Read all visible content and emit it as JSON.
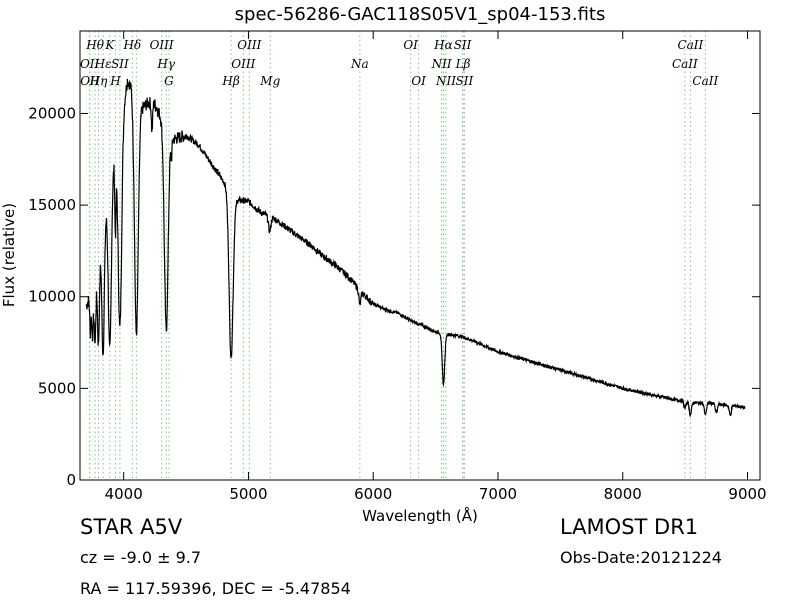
{
  "chart_data": {
    "type": "line",
    "title": "spec-56286-GAC118S05V1_sp04-153.fits",
    "xlabel": "Wavelength (Å)",
    "ylabel": "Flux (relative)",
    "xlim": [
      3650,
      9100
    ],
    "ylim": [
      0,
      24500
    ],
    "xticks": [
      4000,
      5000,
      6000,
      7000,
      8000,
      9000
    ],
    "yticks": [
      0,
      5000,
      10000,
      15000,
      20000
    ],
    "grid": false,
    "series_color": "#000000",
    "line_marker_color": "#7fc97f",
    "continuum": [
      [
        3700,
        9500
      ],
      [
        3730,
        10000
      ],
      [
        3760,
        10500
      ],
      [
        3800,
        12500
      ],
      [
        3850,
        14500
      ],
      [
        3900,
        16500
      ],
      [
        3950,
        18500
      ],
      [
        4000,
        20500
      ],
      [
        4030,
        21800
      ],
      [
        4060,
        21500
      ],
      [
        4100,
        20500
      ],
      [
        4150,
        20300
      ],
      [
        4200,
        20600
      ],
      [
        4250,
        20500
      ],
      [
        4300,
        19800
      ],
      [
        4350,
        19000
      ],
      [
        4400,
        18600
      ],
      [
        4500,
        18800
      ],
      [
        4600,
        18300
      ],
      [
        4700,
        17300
      ],
      [
        4800,
        16300
      ],
      [
        4900,
        15300
      ],
      [
        5000,
        15200
      ],
      [
        5100,
        14600
      ],
      [
        5200,
        14300
      ],
      [
        5300,
        13800
      ],
      [
        5400,
        13300
      ],
      [
        5500,
        12800
      ],
      [
        5600,
        12200
      ],
      [
        5700,
        11700
      ],
      [
        5800,
        11100
      ],
      [
        5900,
        10300
      ],
      [
        6000,
        9600
      ],
      [
        6100,
        9300
      ],
      [
        6200,
        9100
      ],
      [
        6300,
        8700
      ],
      [
        6400,
        8400
      ],
      [
        6500,
        8100
      ],
      [
        6600,
        7950
      ],
      [
        6700,
        7850
      ],
      [
        6800,
        7600
      ],
      [
        6900,
        7300
      ],
      [
        7000,
        7000
      ],
      [
        7200,
        6600
      ],
      [
        7400,
        6200
      ],
      [
        7600,
        5800
      ],
      [
        7800,
        5400
      ],
      [
        8000,
        5000
      ],
      [
        8200,
        4700
      ],
      [
        8400,
        4400
      ],
      [
        8500,
        4300
      ],
      [
        8600,
        4200
      ],
      [
        8700,
        4200
      ],
      [
        8800,
        4100
      ],
      [
        8900,
        4050
      ],
      [
        8980,
        3950
      ]
    ],
    "absorption_features": [
      {
        "center": 3733,
        "depth": 2000,
        "width": 5
      },
      {
        "center": 3750,
        "depth": 2500,
        "width": 6
      },
      {
        "center": 3771,
        "depth": 3500,
        "width": 7
      },
      {
        "center": 3798,
        "depth": 5000,
        "width": 8
      },
      {
        "center": 3835,
        "depth": 7000,
        "width": 10
      },
      {
        "center": 3889,
        "depth": 9000,
        "width": 12
      },
      {
        "center": 3934,
        "depth": 4000,
        "width": 5
      },
      {
        "center": 3970,
        "depth": 11000,
        "width": 14
      },
      {
        "center": 4102,
        "depth": 12500,
        "width": 15
      },
      {
        "center": 4227,
        "depth": 1500,
        "width": 5
      },
      {
        "center": 4341,
        "depth": 11000,
        "width": 15
      },
      {
        "center": 4383,
        "depth": 1000,
        "width": 5
      },
      {
        "center": 4861,
        "depth": 9000,
        "width": 16
      },
      {
        "center": 5170,
        "depth": 800,
        "width": 10
      },
      {
        "center": 5893,
        "depth": 800,
        "width": 8
      },
      {
        "center": 6563,
        "depth": 2800,
        "width": 10
      },
      {
        "center": 8498,
        "depth": 400,
        "width": 8
      },
      {
        "center": 8542,
        "depth": 700,
        "width": 9
      },
      {
        "center": 8662,
        "depth": 600,
        "width": 9
      },
      {
        "center": 8750,
        "depth": 500,
        "width": 8
      },
      {
        "center": 8862,
        "depth": 550,
        "width": 8
      }
    ],
    "line_markers": [
      {
        "wl": 3727,
        "label": "OII",
        "row": 1
      },
      {
        "wl": 3729,
        "label": "OII",
        "row": 2
      },
      {
        "wl": 3771,
        "label": "Hθ",
        "row": 0
      },
      {
        "wl": 3798,
        "label": "Hη",
        "row": 2
      },
      {
        "wl": 3835,
        "label": "Hε",
        "row": 1
      },
      {
        "wl": 3889,
        "label": "K",
        "row": 0
      },
      {
        "wl": 3934,
        "label": "H",
        "row": 2
      },
      {
        "wl": 3970,
        "label": "SII",
        "row": 1
      },
      {
        "wl": 4070,
        "label": "Hδ",
        "row": 0
      },
      {
        "wl": 4102,
        "label": "",
        "row": 0
      },
      {
        "wl": 4304,
        "label": "OIII",
        "row": 0
      },
      {
        "wl": 4341,
        "label": "Hγ",
        "row": 1
      },
      {
        "wl": 4363,
        "label": "G",
        "row": 2
      },
      {
        "wl": 4861,
        "label": "Hβ",
        "row": 2
      },
      {
        "wl": 4959,
        "label": "OIII",
        "row": 1
      },
      {
        "wl": 5007,
        "label": "OIII",
        "row": 0
      },
      {
        "wl": 5175,
        "label": "Mg",
        "row": 2
      },
      {
        "wl": 5893,
        "label": "Na",
        "row": 1
      },
      {
        "wl": 6300,
        "label": "OI",
        "row": 0
      },
      {
        "wl": 6364,
        "label": "OI",
        "row": 2
      },
      {
        "wl": 6548,
        "label": "NII",
        "row": 1
      },
      {
        "wl": 6563,
        "label": "Hα",
        "row": 0
      },
      {
        "wl": 6583,
        "label": "NII",
        "row": 2
      },
      {
        "wl": 6716,
        "label": "SII",
        "row": 0
      },
      {
        "wl": 6720,
        "label": "Lβ",
        "row": 1
      },
      {
        "wl": 6731,
        "label": "SII",
        "row": 2
      },
      {
        "wl": 8498,
        "label": "CaII",
        "row": 1
      },
      {
        "wl": 8542,
        "label": "CaII",
        "row": 0
      },
      {
        "wl": 8662,
        "label": "CaII",
        "row": 2
      }
    ]
  },
  "footer": {
    "object_class": "STAR   A5V",
    "cz": "cz = -9.0  ± 9.7",
    "coords": "RA = 117.59396, DEC = -5.47854",
    "survey": "LAMOST DR1",
    "obs_date": "Obs-Date:20121224"
  }
}
